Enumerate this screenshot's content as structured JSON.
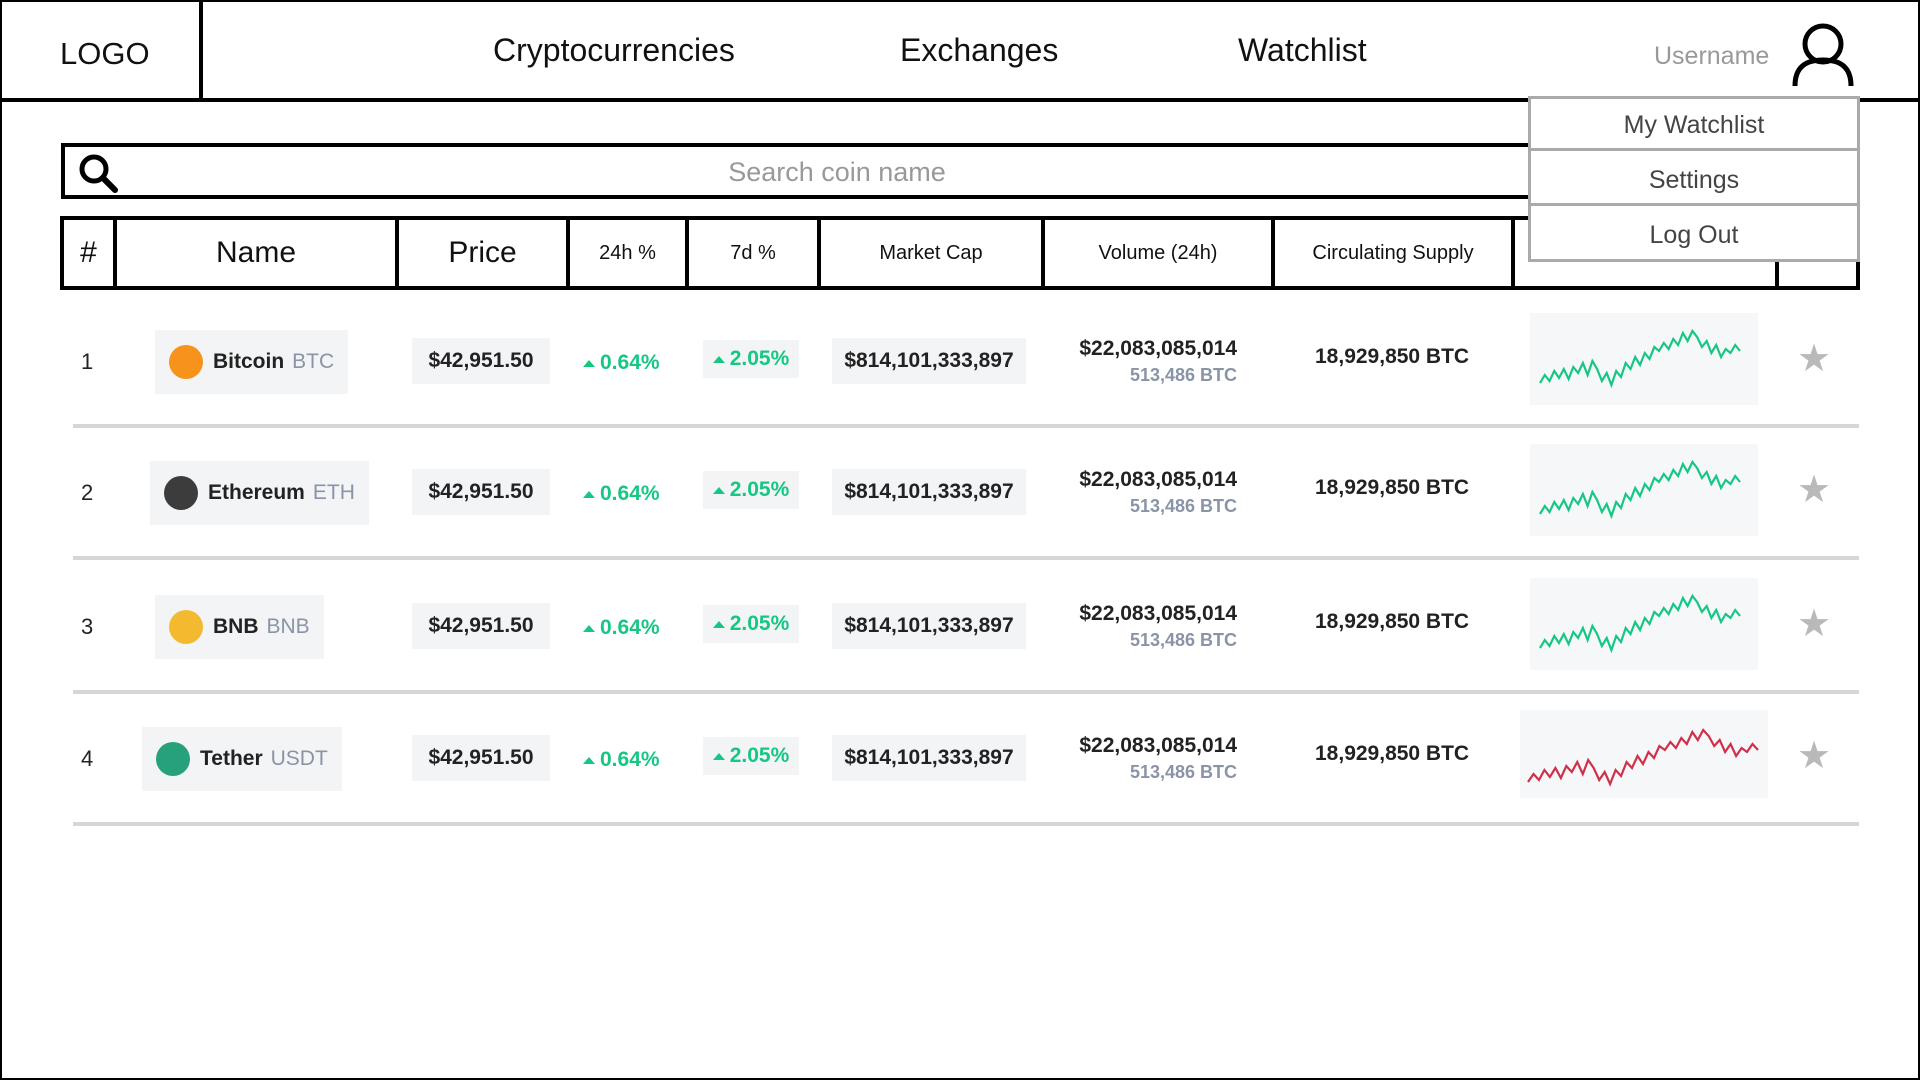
{
  "header": {
    "logo": "LOGO",
    "nav": [
      "Cryptocurrencies",
      "Exchanges",
      "Watchlist"
    ],
    "username": "Username"
  },
  "dropdown": {
    "items": [
      "My Watchlist",
      "Settings",
      "Log Out"
    ]
  },
  "search": {
    "placeholder": "Search coin name"
  },
  "table": {
    "columns": [
      "#",
      "Name",
      "Price",
      "24h %",
      "7d %",
      "Market Cap",
      "Volume (24h)",
      "Circulating Supply",
      "",
      ""
    ],
    "rows": [
      {
        "rank": "1",
        "name": "Bitcoin",
        "symbol": "BTC",
        "price": "$42,951.50",
        "change_24h": "0.64%",
        "change_7d": "2.05%",
        "market_cap": "$814,101,333,897",
        "volume": "$22,083,085,014",
        "volume_sub": "513,486 BTC",
        "supply": "18,929,850 BTC",
        "logo_color": "#f7931a",
        "logo_icon": "bitcoin-icon",
        "spark_color": "#16c784"
      },
      {
        "rank": "2",
        "name": "Ethereum",
        "symbol": "ETH",
        "price": "$42,951.50",
        "change_24h": "0.64%",
        "change_7d": "2.05%",
        "market_cap": "$814,101,333,897",
        "volume": "$22,083,085,014",
        "volume_sub": "513,486 BTC",
        "supply": "18,929,850 BTC",
        "logo_color": "#3c3c3d",
        "logo_icon": "ethereum-icon",
        "spark_color": "#16c784"
      },
      {
        "rank": "3",
        "name": "BNB",
        "symbol": "BNB",
        "price": "$42,951.50",
        "change_24h": "0.64%",
        "change_7d": "2.05%",
        "market_cap": "$814,101,333,897",
        "volume": "$22,083,085,014",
        "volume_sub": "513,486 BTC",
        "supply": "18,929,850 BTC",
        "logo_color": "#f3ba2f",
        "logo_icon": "bnb-icon",
        "spark_color": "#16c784"
      },
      {
        "rank": "4",
        "name": "Tether",
        "symbol": "USDT",
        "price": "$42,951.50",
        "change_24h": "0.64%",
        "change_7d": "2.05%",
        "market_cap": "$814,101,333,897",
        "volume": "$22,083,085,014",
        "volume_sub": "513,486 BTC",
        "supply": "18,929,850 BTC",
        "logo_color": "#26a17b",
        "logo_icon": "tether-icon",
        "spark_color": "#cf304a"
      }
    ]
  },
  "icons": {
    "search": "search-icon",
    "user": "user-icon",
    "star": "star-icon"
  },
  "colors": {
    "positive": "#16c784",
    "negative": "#cf304a"
  }
}
